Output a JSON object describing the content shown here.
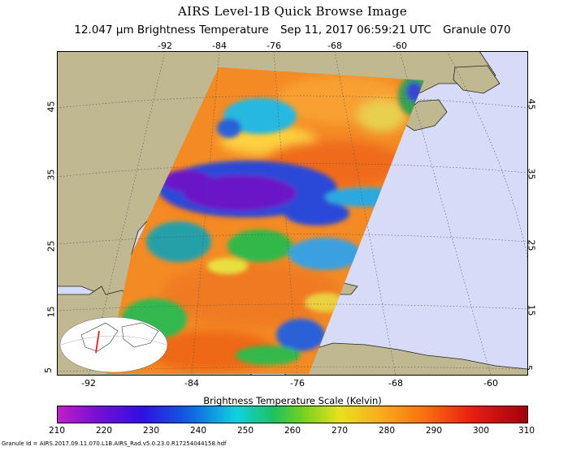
{
  "title": "AIRS Level-1B Quick Browse Image",
  "subtitle": {
    "product": "12.047 µm Brightness Temperature",
    "datetime": "Sep 11, 2017 06:59:21 UTC",
    "granule": "Granule 070"
  },
  "longitude_ticks_top": [
    "-92",
    "-84",
    "-76",
    "-68",
    "-60"
  ],
  "longitude_ticks_bottom": [
    "-92",
    "-84",
    "-76",
    "-68",
    "-60"
  ],
  "latitude_ticks": [
    "45",
    "35",
    "25",
    "15",
    "5"
  ],
  "colorbar": {
    "title": "Brightness Temperature Scale (Kelvin)",
    "labels": [
      "210",
      "220",
      "230",
      "240",
      "250",
      "260",
      "270",
      "280",
      "290",
      "300",
      "310"
    ],
    "min": 210,
    "max": 310
  },
  "colors": {
    "ocean": "#d6dcf8",
    "land": "#c0b890",
    "swath_warm": "#f48a24",
    "swath_cold": "#6a18c8"
  },
  "footer": "Granule Id = AIRS.2017.09.11.070.L1B.AIRS_Rad.v5.0.23.0.R17254044158.hdf"
}
